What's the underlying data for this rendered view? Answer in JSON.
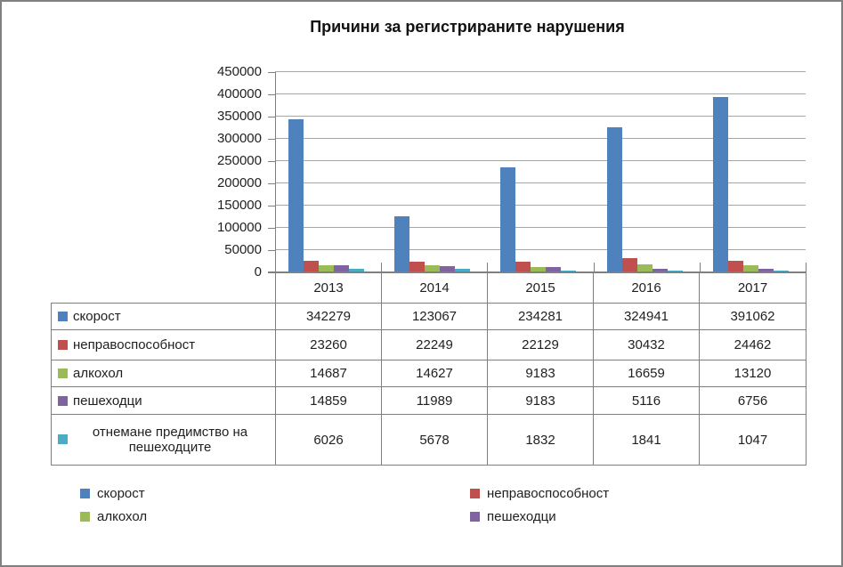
{
  "title": "Причини за регистрираните нарушения",
  "chart_data": {
    "type": "bar",
    "title": "Причини за регистрираните нарушения",
    "categories": [
      "2013",
      "2014",
      "2015",
      "2016",
      "2017"
    ],
    "series": [
      {
        "name": "скорост",
        "color": "#4F81BD",
        "values": [
          342279,
          123067,
          234281,
          324941,
          391062
        ]
      },
      {
        "name": "неправоспособност",
        "color": "#C0504D",
        "values": [
          23260,
          22249,
          22129,
          30432,
          24462
        ]
      },
      {
        "name": "алкохол",
        "color": "#9BBB59",
        "values": [
          14687,
          14627,
          9183,
          16659,
          13120
        ]
      },
      {
        "name": "пешеходци",
        "color": "#8064A2",
        "values": [
          14859,
          11989,
          9183,
          5116,
          6756
        ]
      },
      {
        "name": "отнемане предимство на пешеходците",
        "color": "#4BACC6",
        "values": [
          6026,
          5678,
          1832,
          1841,
          1047
        ]
      }
    ],
    "ylim": [
      0,
      450000
    ],
    "ytick_step": 50000,
    "ytick_labels": [
      "0",
      "50000",
      "100000",
      "150000",
      "200000",
      "250000",
      "300000",
      "350000",
      "400000",
      "450000"
    ],
    "grid": true,
    "legend_position": "bottom",
    "data_table_shown": true
  },
  "legend": {
    "items": [
      {
        "label": "скорост",
        "color": "#4F81BD"
      },
      {
        "label": "неправоспособност",
        "color": "#C0504D"
      },
      {
        "label": "алкохол",
        "color": "#9BBB59"
      },
      {
        "label": "пешеходци",
        "color": "#8064A2"
      }
    ]
  }
}
